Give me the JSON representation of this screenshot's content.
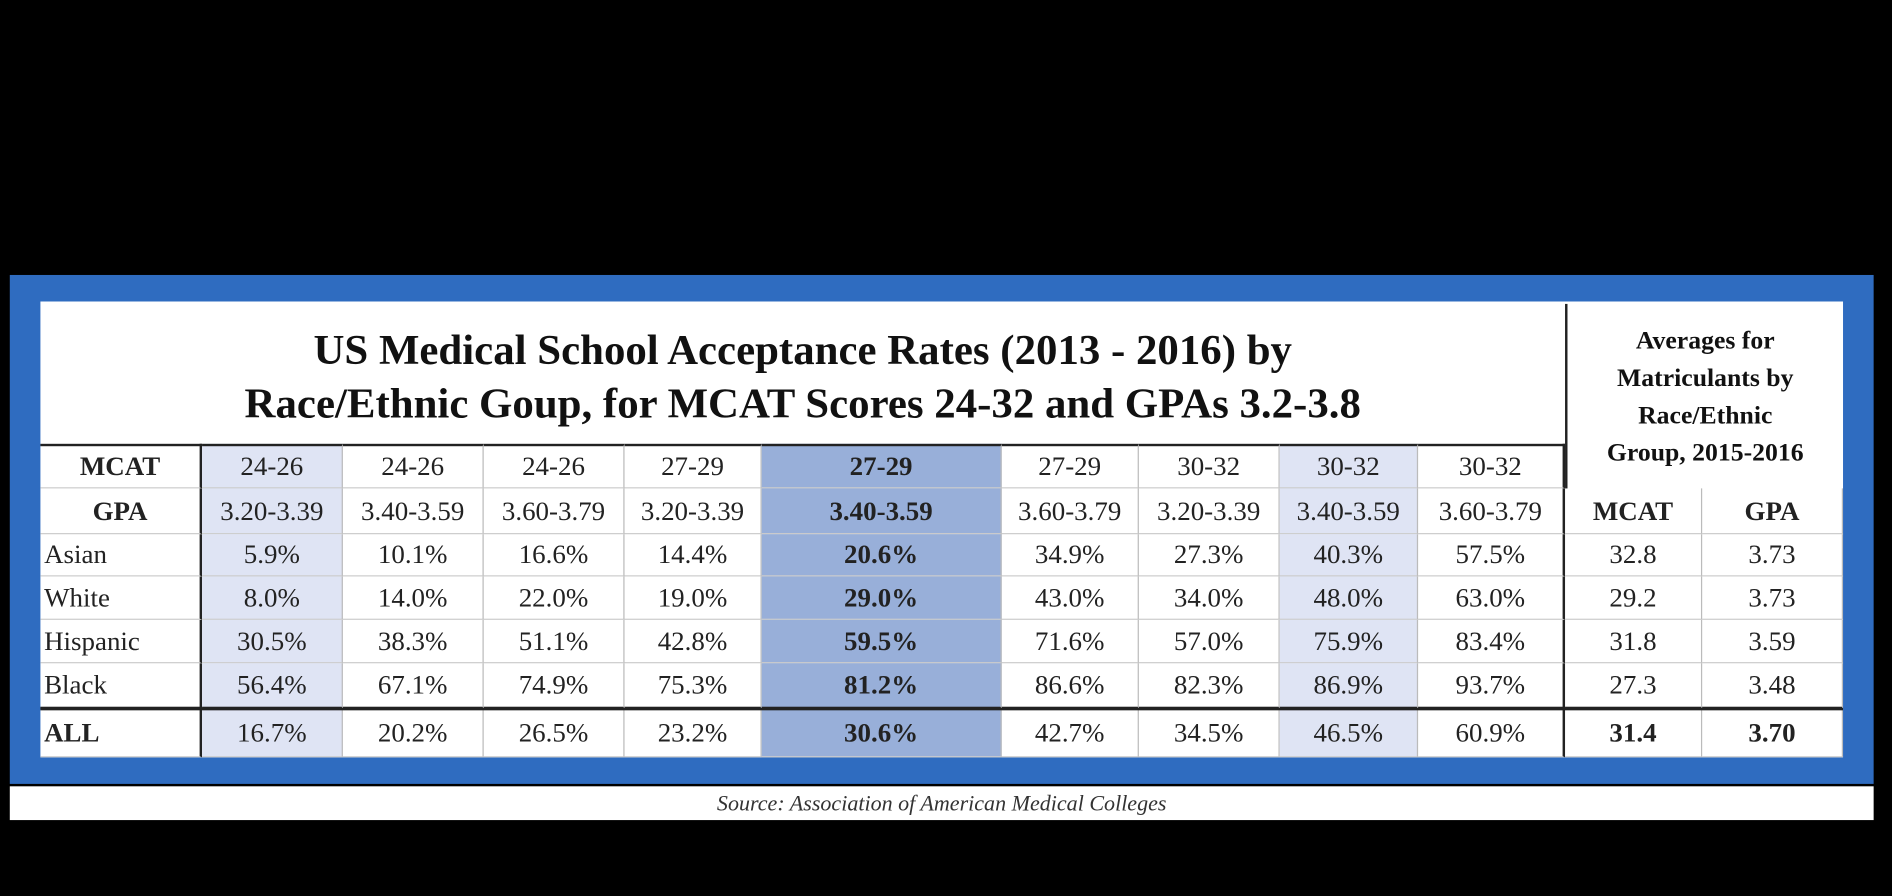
{
  "title": {
    "lines": [
      "US Medical School Acceptance Rates (2013 - 2016) by",
      "Race/Ethnic Goup, for MCAT Scores 24-32 and GPAs 3.2-3.8"
    ]
  },
  "averages": {
    "lines": [
      "Averages for",
      "Matriculants by",
      "Race/Ethnic",
      "Group, 2015-2016"
    ],
    "headers": [
      "MCAT",
      "GPA"
    ]
  },
  "table": {
    "mcat": {
      "label": "MCAT",
      "values": [
        "24-26",
        "24-26",
        "24-26",
        "27-29",
        "27-29",
        "27-29",
        "30-32",
        "30-32",
        "30-32"
      ]
    },
    "gpa": {
      "label": "GPA",
      "values": [
        "3.20-3.39",
        "3.40-3.59",
        "3.60-3.79",
        "3.20-3.39",
        "3.40-3.59",
        "3.60-3.79",
        "3.20-3.39",
        "3.40-3.59",
        "3.60-3.79"
      ]
    },
    "rows": [
      {
        "label": "Asian",
        "rates": [
          "5.9%",
          "10.1%",
          "16.6%",
          "14.4%",
          "20.6%",
          "34.9%",
          "27.3%",
          "40.3%",
          "57.5%"
        ],
        "mcat": "32.8",
        "gpa": "3.73"
      },
      {
        "label": "White",
        "rates": [
          "8.0%",
          "14.0%",
          "22.0%",
          "19.0%",
          "29.0%",
          "43.0%",
          "34.0%",
          "48.0%",
          "63.0%"
        ],
        "mcat": "29.2",
        "gpa": "3.73"
      },
      {
        "label": "Hispanic",
        "rates": [
          "30.5%",
          "38.3%",
          "51.1%",
          "42.8%",
          "59.5%",
          "71.6%",
          "57.0%",
          "75.9%",
          "83.4%"
        ],
        "mcat": "31.8",
        "gpa": "3.59"
      },
      {
        "label": "Black",
        "rates": [
          "56.4%",
          "67.1%",
          "74.9%",
          "75.3%",
          "81.2%",
          "86.6%",
          "82.3%",
          "86.9%",
          "93.7%"
        ],
        "mcat": "27.3",
        "gpa": "3.48"
      },
      {
        "label": "ALL",
        "rates": [
          "16.7%",
          "20.2%",
          "26.5%",
          "23.2%",
          "30.6%",
          "42.7%",
          "34.5%",
          "46.5%",
          "60.9%"
        ],
        "mcat": "31.4",
        "gpa": "3.70"
      }
    ]
  },
  "source": "Source: Association of American Medical Colleges"
}
